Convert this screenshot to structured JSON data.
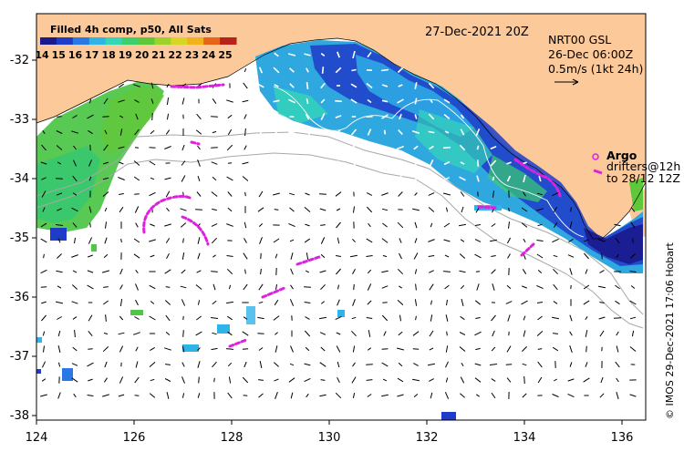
{
  "colorbar": {
    "title": "Filled 4h comp, p50, All Sats",
    "ticks": [
      "14",
      "15",
      "16",
      "17",
      "18",
      "19",
      "20",
      "21",
      "22",
      "23",
      "24",
      "25"
    ],
    "colors": [
      "#1a1a8c",
      "#1f3cc8",
      "#2a78e6",
      "#2fb4e8",
      "#34d6b8",
      "#3ccf6e",
      "#5cc83a",
      "#9cd22a",
      "#d8d624",
      "#f2b21c",
      "#e8641a",
      "#b8221a"
    ]
  },
  "map": {
    "date_label": "27-Dec-2021 20Z",
    "product": {
      "line1": "NRT00 GSL",
      "line2": "26-Dec 06:00Z",
      "line3": "0.5m/s (1kt 24h)"
    },
    "legend": {
      "argo": "Argo",
      "drifters": "drifters@12h",
      "to": "to 28/12 12Z"
    },
    "credit": "© IMOS 29-Dec-2021 17:06 Hobart",
    "land_color": "#fbc99a",
    "track_color": "#e020e0"
  },
  "axes": {
    "x_ticks": [
      "124",
      "126",
      "128",
      "130",
      "132",
      "134",
      "136"
    ],
    "y_ticks": [
      "-32",
      "-33",
      "-34",
      "-35",
      "-36",
      "-37",
      "-38"
    ]
  }
}
